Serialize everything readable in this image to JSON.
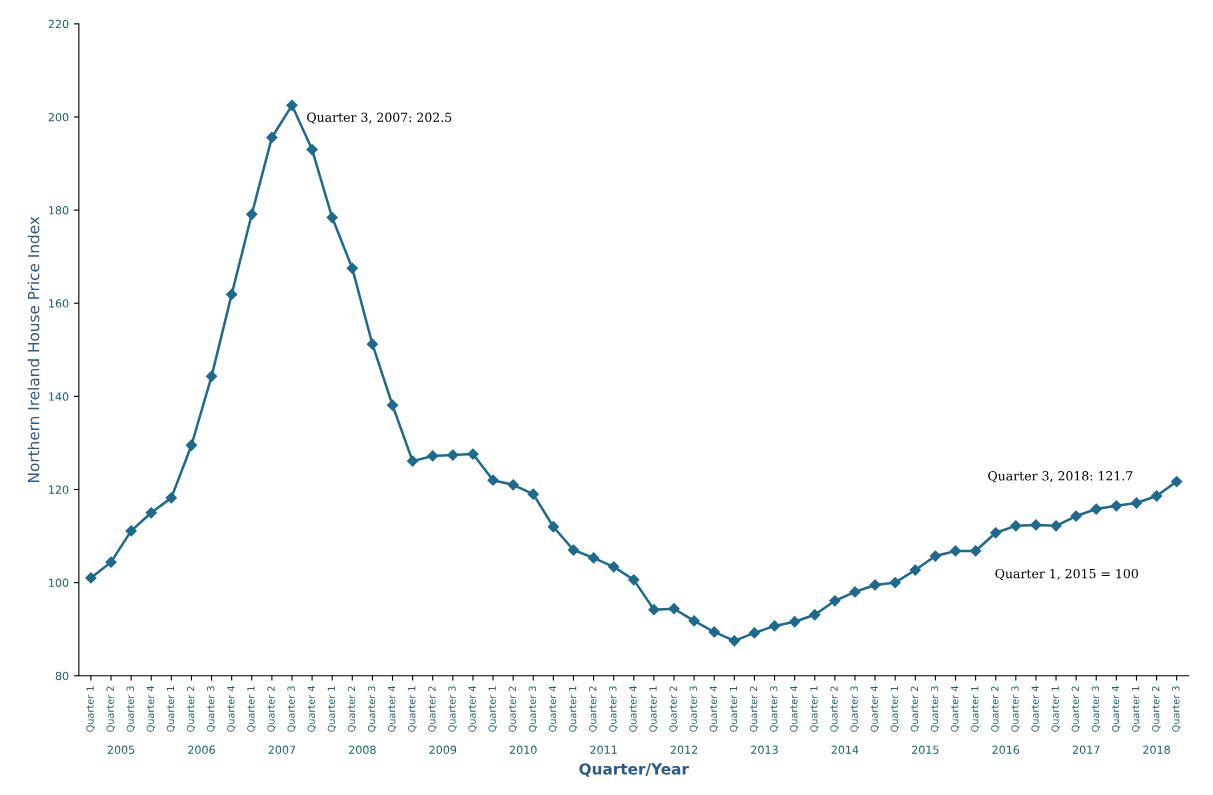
{
  "chart_data": {
    "type": "line",
    "xlabel": "Quarter/Year",
    "ylabel": "Northern Ireland House Price Index",
    "categories": [
      "Quarter 1",
      "Quarter 2",
      "Quarter 3",
      "Quarter 4",
      "Quarter 1",
      "Quarter 2",
      "Quarter 3",
      "Quarter 4",
      "Quarter 1",
      "Quarter 2",
      "Quarter 3",
      "Quarter 4",
      "Quarter 1",
      "Quarter 2",
      "Quarter 3",
      "Quarter 4",
      "Quarter 1",
      "Quarter 2",
      "Quarter 3",
      "Quarter 4",
      "Quarter 1",
      "Quarter 2",
      "Quarter 3",
      "Quarter 4",
      "Quarter 1",
      "Quarter 2",
      "Quarter 3",
      "Quarter 4",
      "Quarter 1",
      "Quarter 2",
      "Quarter 3",
      "Quarter 4",
      "Quarter 1",
      "Quarter 2",
      "Quarter 3",
      "Quarter 4",
      "Quarter 1",
      "Quarter 2",
      "Quarter 3",
      "Quarter 4",
      "Quarter 1",
      "Quarter 2",
      "Quarter 3",
      "Quarter 4",
      "Quarter 1",
      "Quarter 2",
      "Quarter 3",
      "Quarter 4",
      "Quarter 1",
      "Quarter 2",
      "Quarter 3",
      "Quarter 4",
      "Quarter 1",
      "Quarter 2",
      "Quarter 3"
    ],
    "series": [
      {
        "color": "#1d6a8f",
        "values": [
          101,
          104.4,
          111.1,
          115,
          118.2,
          129.5,
          144.3,
          161.9,
          179.1,
          195.6,
          202.5,
          193,
          178.4,
          167.5,
          151.2,
          138.1,
          126.1,
          127.2,
          127.4,
          127.6,
          122,
          121,
          119,
          112,
          107,
          105.3,
          103.4,
          100.6,
          94.2,
          94.4,
          91.8,
          89.4,
          87.5,
          89.2,
          90.7,
          91.6,
          93.1,
          96.1,
          98,
          99.5,
          100,
          102.7,
          105.7,
          106.8,
          106.8,
          110.7,
          112.2,
          112.4,
          112.2,
          114.3,
          115.8,
          116.5,
          117.1,
          118.6,
          121.7
        ]
      }
    ],
    "ylim": [
      80,
      220
    ],
    "yticks": [
      80,
      100,
      120,
      140,
      160,
      180,
      200,
      220
    ],
    "grid": false,
    "legend": false,
    "marker": "diamond",
    "line_style": "solid",
    "annotations": [
      "2005",
      "2006",
      "2007",
      "2008",
      "2009",
      "2010",
      "2011",
      "2012",
      "2013",
      "2014",
      "2015",
      "2016",
      "2017",
      "2018",
      "Quarter 3, 2007: 202.5",
      "Quarter 3, 2018: 121.7",
      "Quarter 1, 2015 = 100"
    ]
  }
}
